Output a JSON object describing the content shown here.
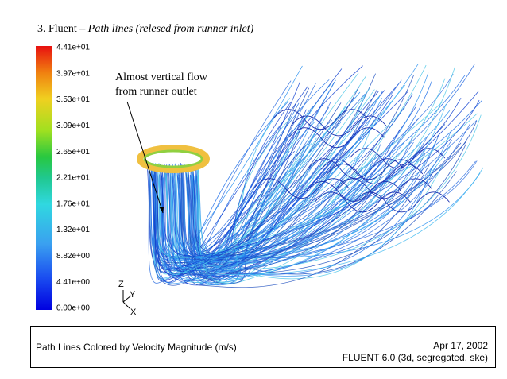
{
  "title": {
    "number": "3. Fluent –",
    "subtitle": "Path lines (relesed from runner inlet)"
  },
  "colorbar": {
    "labels": [
      "4.41e+01",
      "3.97e+01",
      "3.53e+01",
      "3.09e+01",
      "2.65e+01",
      "2.21e+01",
      "1.76e+01",
      "1.32e+01",
      "8.82e+00",
      "4.41e+00",
      "0.00e+00"
    ]
  },
  "annotation": {
    "lines": [
      "Almost vertical flow",
      "from runner outlet"
    ]
  },
  "axes_triad": {
    "z": "Z",
    "y": "Y",
    "x": "X"
  },
  "footer": {
    "caption": "Path Lines Colored by Velocity Magnitude (m/s)",
    "date": "Apr 17, 2002",
    "version": "FLUENT 6.0 (3d, segregated, ske)"
  }
}
